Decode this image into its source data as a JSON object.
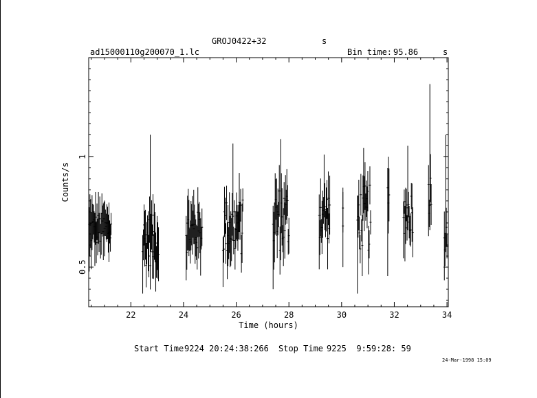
{
  "header": {
    "object": "GROJ0422+32",
    "object_unit": "s",
    "filename": "ad15000110g200070_1.lc",
    "bin_time_label": "Bin time:",
    "bin_time_value": "95.86",
    "bin_time_unit": "s"
  },
  "footer": {
    "start_label": "Start Time",
    "start_value": "9224 20:24:38:266",
    "stop_label": "Stop Time",
    "stop_value": "9225  9:59:28: 59",
    "date_stamp": "24-Mar-1998 15:09"
  },
  "chart_data": {
    "type": "scatter",
    "title": "",
    "xlabel": "Time (hours)",
    "ylabel": "Counts/s",
    "xlim": [
      20.4,
      34.05
    ],
    "ylim": [
      0.32,
      1.45
    ],
    "x_ticks": [
      22,
      24,
      26,
      28,
      30,
      32,
      34
    ],
    "y_ticks": [
      0.5,
      1
    ],
    "x_ticks_labeled": [
      22,
      24,
      26,
      28,
      30,
      32,
      34
    ],
    "y_ticks_labeled": [
      0.5,
      1
    ],
    "grid": false,
    "colors": {
      "marks": "#000000",
      "background": "#ffffff"
    },
    "segments": [
      {
        "t_start": 20.42,
        "t_end": 21.25,
        "y_low": 0.46,
        "y_high": 0.84,
        "y_mean": 0.67
      },
      {
        "t_start": 22.45,
        "t_end": 23.05,
        "y_low": 0.36,
        "y_high": 1.12,
        "y_mean": 0.62
      },
      {
        "t_start": 24.1,
        "t_end": 24.7,
        "y_low": 0.42,
        "y_high": 0.87,
        "y_mean": 0.66
      },
      {
        "t_start": 25.5,
        "t_end": 26.25,
        "y_low": 0.39,
        "y_high": 1.08,
        "y_mean": 0.68
      },
      {
        "t_start": 27.4,
        "t_end": 28.0,
        "y_low": 0.38,
        "y_high": 1.1,
        "y_mean": 0.72
      },
      {
        "t_start": 29.15,
        "t_end": 29.55,
        "y_low": 0.47,
        "y_high": 1.03,
        "y_mean": 0.74
      },
      {
        "t_start": 30.05,
        "t_end": 30.05,
        "y_low": 0.48,
        "y_high": 0.86,
        "y_mean": 0.7
      },
      {
        "t_start": 30.6,
        "t_end": 31.1,
        "y_low": 0.36,
        "y_high": 1.06,
        "y_mean": 0.72
      },
      {
        "t_start": 31.75,
        "t_end": 31.8,
        "y_low": 0.44,
        "y_high": 1.02,
        "y_mean": 0.76
      },
      {
        "t_start": 32.35,
        "t_end": 32.7,
        "y_low": 0.52,
        "y_high": 1.07,
        "y_mean": 0.75
      },
      {
        "t_start": 33.3,
        "t_end": 33.4,
        "y_low": 0.62,
        "y_high": 1.35,
        "y_mean": 0.84
      },
      {
        "t_start": 33.9,
        "t_end": 34.0,
        "y_low": 0.42,
        "y_high": 1.12,
        "y_mean": 0.7
      }
    ]
  }
}
